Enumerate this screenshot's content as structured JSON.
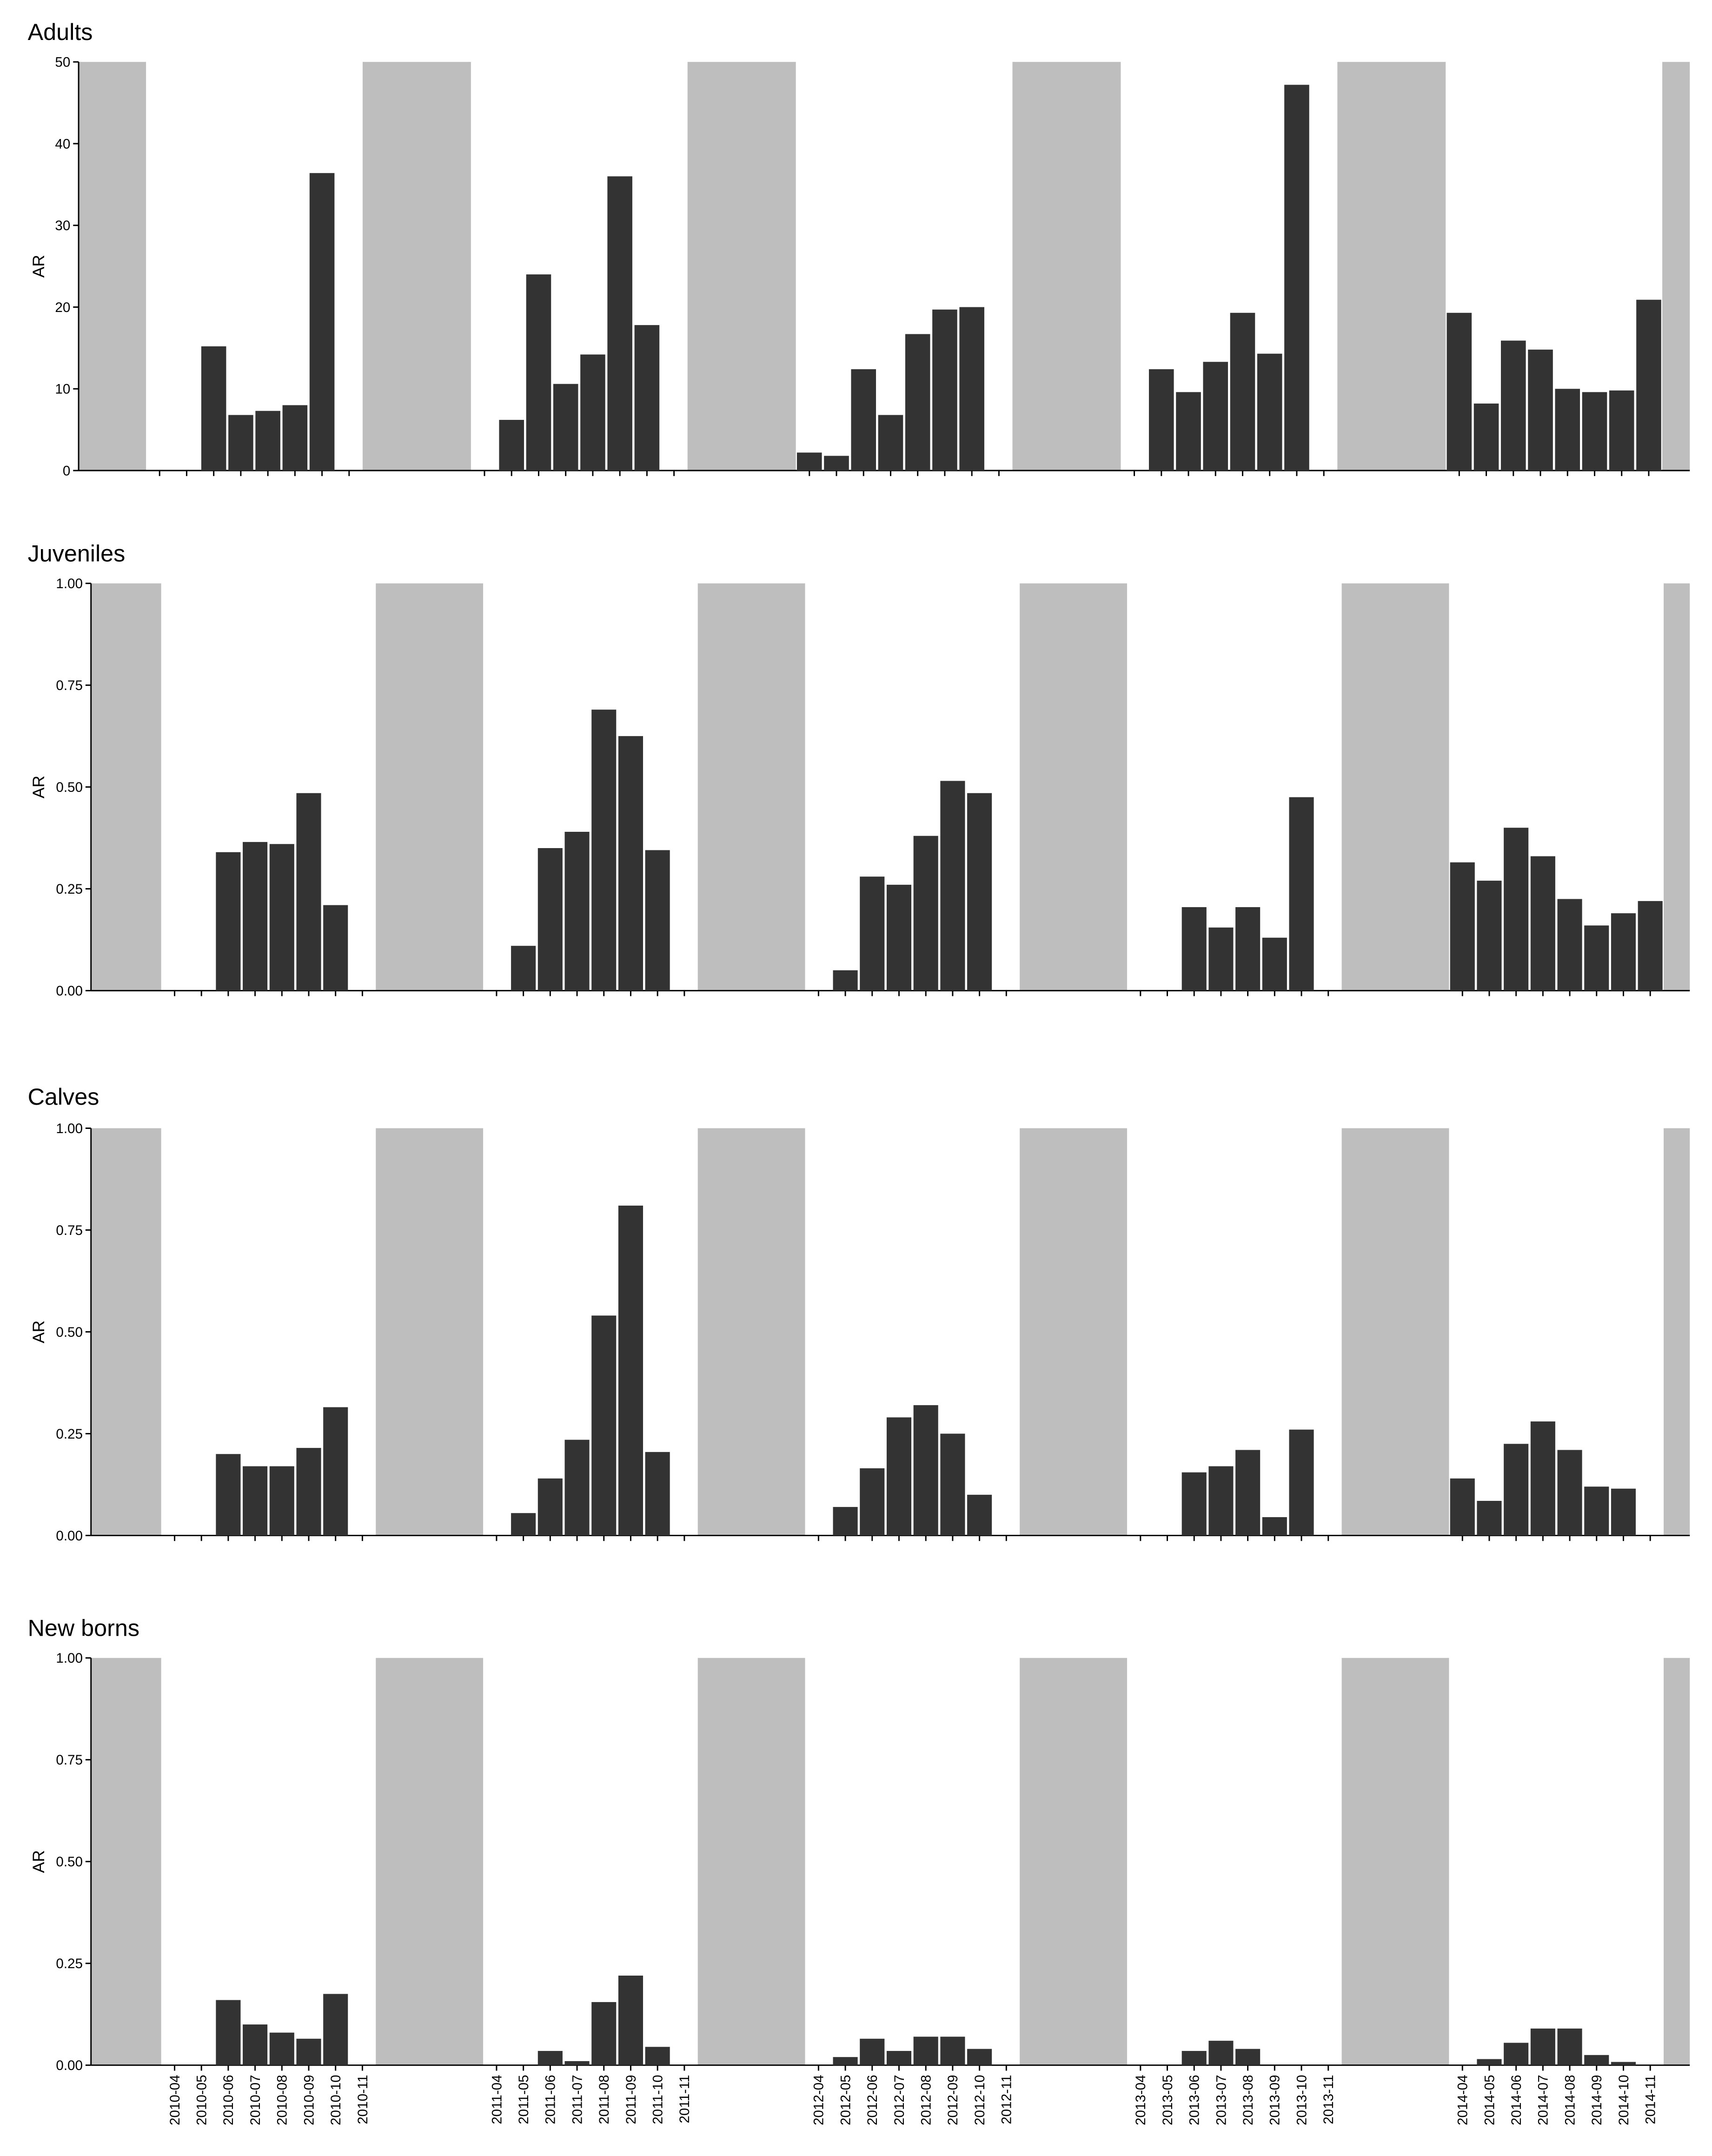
{
  "chart_data": [
    {
      "type": "bar",
      "title": "Adults",
      "ylabel": "AR",
      "color": "#333333",
      "shade_color": "#bebebe",
      "categories": [
        "2010-04",
        "2010-05",
        "2010-06",
        "2010-07",
        "2010-08",
        "2010-09",
        "2010-10",
        "2010-11",
        "2011-04",
        "2011-05",
        "2011-06",
        "2011-07",
        "2011-08",
        "2011-09",
        "2011-10",
        "2011-11",
        "2012-04",
        "2012-05",
        "2012-06",
        "2012-07",
        "2012-08",
        "2012-09",
        "2012-10",
        "2012-11",
        "2013-04",
        "2013-05",
        "2013-06",
        "2013-07",
        "2013-08",
        "2013-09",
        "2013-10",
        "2013-11",
        "2014-04",
        "2014-05",
        "2014-06",
        "2014-07",
        "2014-08",
        "2014-09",
        "2014-10",
        "2014-11"
      ],
      "values": [
        null,
        null,
        15.2,
        6.8,
        7.3,
        8.0,
        36.4,
        null,
        null,
        6.2,
        24.0,
        10.6,
        14.2,
        36.0,
        17.8,
        null,
        2.2,
        1.8,
        12.4,
        6.8,
        16.7,
        19.7,
        20.0,
        null,
        null,
        12.4,
        9.6,
        13.3,
        19.3,
        14.3,
        47.2,
        null,
        19.3,
        8.2,
        15.9,
        14.8,
        10.0,
        9.6,
        9.8,
        20.9
      ],
      "ylim": [
        0,
        50
      ],
      "yticks": [
        0,
        10,
        20,
        30,
        40,
        50
      ]
    },
    {
      "type": "bar",
      "title": "Juveniles",
      "ylabel": "AR",
      "color": "#333333",
      "shade_color": "#bebebe",
      "categories": [
        "2010-04",
        "2010-05",
        "2010-06",
        "2010-07",
        "2010-08",
        "2010-09",
        "2010-10",
        "2010-11",
        "2011-04",
        "2011-05",
        "2011-06",
        "2011-07",
        "2011-08",
        "2011-09",
        "2011-10",
        "2011-11",
        "2012-04",
        "2012-05",
        "2012-06",
        "2012-07",
        "2012-08",
        "2012-09",
        "2012-10",
        "2012-11",
        "2013-04",
        "2013-05",
        "2013-06",
        "2013-07",
        "2013-08",
        "2013-09",
        "2013-10",
        "2013-11",
        "2014-04",
        "2014-05",
        "2014-06",
        "2014-07",
        "2014-08",
        "2014-09",
        "2014-10",
        "2014-11"
      ],
      "values": [
        null,
        null,
        0.34,
        0.365,
        0.36,
        0.485,
        0.21,
        null,
        null,
        0.11,
        0.35,
        0.39,
        0.69,
        0.625,
        0.345,
        null,
        null,
        0.05,
        0.28,
        0.26,
        0.38,
        0.515,
        0.485,
        null,
        null,
        null,
        0.205,
        0.155,
        0.205,
        0.13,
        0.475,
        null,
        0.315,
        0.27,
        0.4,
        0.33,
        0.225,
        0.16,
        0.19,
        0.22
      ],
      "ylim": [
        0,
        1
      ],
      "yticks": [
        {
          "value": 0,
          "label": "0.00"
        },
        {
          "value": 0.25,
          "label": "0.25"
        },
        {
          "value": 0.5,
          "label": "0.50"
        },
        {
          "value": 0.75,
          "label": "0.75"
        },
        {
          "value": 1,
          "label": "1.00"
        }
      ]
    },
    {
      "type": "bar",
      "title": "Calves",
      "ylabel": "AR",
      "color": "#333333",
      "shade_color": "#bebebe",
      "categories": [
        "2010-04",
        "2010-05",
        "2010-06",
        "2010-07",
        "2010-08",
        "2010-09",
        "2010-10",
        "2010-11",
        "2011-04",
        "2011-05",
        "2011-06",
        "2011-07",
        "2011-08",
        "2011-09",
        "2011-10",
        "2011-11",
        "2012-04",
        "2012-05",
        "2012-06",
        "2012-07",
        "2012-08",
        "2012-09",
        "2012-10",
        "2012-11",
        "2013-04",
        "2013-05",
        "2013-06",
        "2013-07",
        "2013-08",
        "2013-09",
        "2013-10",
        "2013-11",
        "2014-04",
        "2014-05",
        "2014-06",
        "2014-07",
        "2014-08",
        "2014-09",
        "2014-10",
        "2014-11"
      ],
      "values": [
        null,
        null,
        0.2,
        0.17,
        0.17,
        0.215,
        0.315,
        null,
        null,
        0.055,
        0.14,
        0.235,
        0.54,
        0.81,
        0.205,
        null,
        null,
        0.07,
        0.165,
        0.29,
        0.32,
        0.25,
        0.1,
        null,
        null,
        null,
        0.155,
        0.17,
        0.21,
        0.045,
        0.26,
        null,
        0.14,
        0.085,
        0.225,
        0.28,
        0.21,
        0.12,
        0.115,
        null
      ],
      "ylim": [
        0,
        1
      ],
      "yticks": [
        {
          "value": 0,
          "label": "0.00"
        },
        {
          "value": 0.25,
          "label": "0.25"
        },
        {
          "value": 0.5,
          "label": "0.50"
        },
        {
          "value": 0.75,
          "label": "0.75"
        },
        {
          "value": 1,
          "label": "1.00"
        }
      ]
    },
    {
      "type": "bar",
      "title": "New borns",
      "ylabel": "AR",
      "color": "#333333",
      "shade_color": "#bebebe",
      "categories": [
        "2010-04",
        "2010-05",
        "2010-06",
        "2010-07",
        "2010-08",
        "2010-09",
        "2010-10",
        "2010-11",
        "2011-04",
        "2011-05",
        "2011-06",
        "2011-07",
        "2011-08",
        "2011-09",
        "2011-10",
        "2011-11",
        "2012-04",
        "2012-05",
        "2012-06",
        "2012-07",
        "2012-08",
        "2012-09",
        "2012-10",
        "2012-11",
        "2013-04",
        "2013-05",
        "2013-06",
        "2013-07",
        "2013-08",
        "2013-09",
        "2013-10",
        "2013-11",
        "2014-04",
        "2014-05",
        "2014-06",
        "2014-07",
        "2014-08",
        "2014-09",
        "2014-10",
        "2014-11"
      ],
      "values": [
        null,
        null,
        0.16,
        0.1,
        0.08,
        0.065,
        0.175,
        null,
        null,
        null,
        0.035,
        0.01,
        0.155,
        0.22,
        0.045,
        null,
        null,
        0.02,
        0.065,
        0.035,
        0.07,
        0.07,
        0.04,
        null,
        null,
        null,
        0.035,
        0.06,
        0.04,
        null,
        null,
        null,
        null,
        0.015,
        0.055,
        0.09,
        0.09,
        0.025,
        0.008,
        null
      ],
      "ylim": [
        0,
        1
      ],
      "yticks": [
        {
          "value": 0,
          "label": "0.00"
        },
        {
          "value": 0.25,
          "label": "0.25"
        },
        {
          "value": 0.5,
          "label": "0.50"
        },
        {
          "value": 0.75,
          "label": "0.75"
        },
        {
          "value": 1,
          "label": "1.00"
        }
      ]
    }
  ]
}
